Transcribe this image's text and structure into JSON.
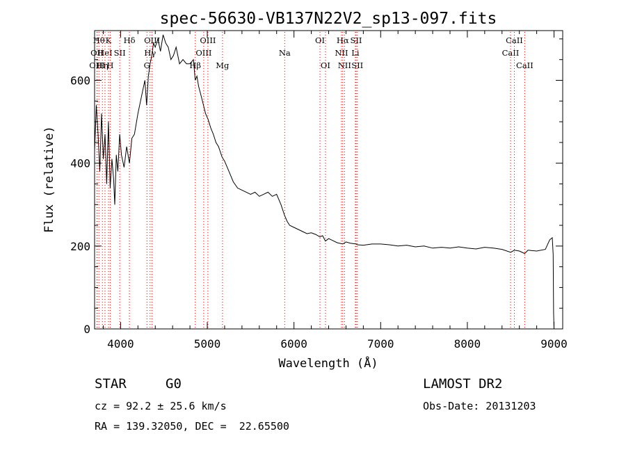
{
  "chart_data": {
    "type": "line",
    "title": "spec-56630-VB137N22V2_sp13-097.fits",
    "xlabel": "Wavelength (Å)",
    "ylabel": "Flux (relative)",
    "xlim": [
      3700,
      9100
    ],
    "ylim": [
      0,
      720
    ],
    "xticks": [
      4000,
      5000,
      6000,
      7000,
      8000,
      9000
    ],
    "yticks": [
      0,
      200,
      400,
      600
    ],
    "x_minor_step": 200,
    "y_minor_step": 50,
    "line_color": "#000000",
    "marker_color": "#cc0000",
    "series": [
      {
        "x": [
          3700,
          3720,
          3740,
          3760,
          3780,
          3800,
          3820,
          3840,
          3860,
          3880,
          3900,
          3920,
          3933,
          3950,
          3968,
          3990,
          4010,
          4040,
          4070,
          4102,
          4130,
          4160,
          4200,
          4240,
          4280,
          4300,
          4320,
          4340,
          4360,
          4380,
          4400,
          4430,
          4460,
          4490,
          4520,
          4550,
          4580,
          4610,
          4640,
          4680,
          4720,
          4760,
          4800,
          4840,
          4861,
          4880,
          4900,
          4920,
          4950,
          4980,
          5010,
          5040,
          5070,
          5100,
          5130,
          5170,
          5200,
          5250,
          5300,
          5350,
          5400,
          5450,
          5500,
          5550,
          5600,
          5650,
          5700,
          5750,
          5800,
          5850,
          5890,
          5920,
          5950,
          6000,
          6050,
          6100,
          6150,
          6200,
          6250,
          6300,
          6330,
          6363,
          6400,
          6450,
          6500,
          6563,
          6600,
          6650,
          6717,
          6731,
          6800,
          6900,
          7000,
          7100,
          7200,
          7300,
          7400,
          7500,
          7600,
          7700,
          7800,
          7900,
          8000,
          8100,
          8200,
          8300,
          8400,
          8500,
          8542,
          8600,
          8662,
          8700,
          8800,
          8900,
          8950,
          8980,
          8990,
          8995,
          9000
        ],
        "y": [
          430,
          540,
          470,
          380,
          520,
          410,
          470,
          350,
          500,
          340,
          410,
          360,
          300,
          420,
          380,
          470,
          420,
          390,
          440,
          400,
          460,
          470,
          520,
          560,
          600,
          540,
          610,
          640,
          660,
          690,
          680,
          700,
          670,
          710,
          690,
          680,
          650,
          660,
          680,
          640,
          650,
          640,
          640,
          650,
          600,
          610,
          585,
          570,
          545,
          520,
          505,
          485,
          470,
          450,
          440,
          415,
          405,
          380,
          355,
          340,
          335,
          330,
          325,
          330,
          320,
          325,
          330,
          320,
          325,
          300,
          275,
          260,
          250,
          245,
          240,
          235,
          230,
          232,
          228,
          222,
          225,
          212,
          218,
          213,
          208,
          205,
          210,
          207,
          205,
          203,
          202,
          205,
          205,
          203,
          200,
          202,
          198,
          200,
          195,
          197,
          195,
          198,
          195,
          193,
          197,
          195,
          192,
          185,
          190,
          188,
          182,
          190,
          188,
          192,
          215,
          220,
          180,
          40,
          0
        ]
      }
    ],
    "line_markers": [
      {
        "label": "OII",
        "x": 3727,
        "row": 1
      },
      {
        "label": "OIII",
        "x": 3730,
        "row": 2
      },
      {
        "label": "Hθ",
        "x": 3750,
        "row": 0
      },
      {
        "label": "Hη",
        "x": 3790,
        "row": 2
      },
      {
        "label": "HeI",
        "x": 3820,
        "row": 1
      },
      {
        "label": "K",
        "x": 3860,
        "row": 0
      },
      {
        "label": "H",
        "x": 3880,
        "row": 2
      },
      {
        "label": "SII",
        "x": 3990,
        "row": 1
      },
      {
        "label": "Hδ",
        "x": 4102,
        "row": 0
      },
      {
        "label": "OIII",
        "x": 4363,
        "row": 0
      },
      {
        "label": "Hγ",
        "x": 4340,
        "row": 1
      },
      {
        "label": "G",
        "x": 4304,
        "row": 2
      },
      {
        "label": "Hβ",
        "x": 4861,
        "row": 2
      },
      {
        "label": "OIII",
        "x": 4959,
        "row": 1
      },
      {
        "label": "OIII",
        "x": 5007,
        "row": 0
      },
      {
        "label": "Mg",
        "x": 5175,
        "row": 2
      },
      {
        "label": "Na",
        "x": 5893,
        "row": 1
      },
      {
        "label": "OI",
        "x": 6300,
        "row": 0
      },
      {
        "label": "OI",
        "x": 6363,
        "row": 2
      },
      {
        "label": "NII",
        "x": 6548,
        "row": 1
      },
      {
        "label": "Hα",
        "x": 6563,
        "row": 0
      },
      {
        "label": "NII",
        "x": 6583,
        "row": 2
      },
      {
        "label": "SII",
        "x": 6717,
        "row": 0
      },
      {
        "label": "Li",
        "x": 6708,
        "row": 1
      },
      {
        "label": "SII",
        "x": 6731,
        "row": 2
      },
      {
        "label": "CaII",
        "x": 8498,
        "row": 1
      },
      {
        "label": "CaII",
        "x": 8542,
        "row": 0
      },
      {
        "label": "CaII",
        "x": 8662,
        "row": 2
      }
    ]
  },
  "info": {
    "class": "STAR",
    "subclass": "G0",
    "survey": "LAMOST DR2",
    "cz": "cz = 92.2 ± 25.6 km/s",
    "obs_date": "Obs-Date: 20131203",
    "coords": "RA = 139.32050, DEC =  22.65500"
  }
}
